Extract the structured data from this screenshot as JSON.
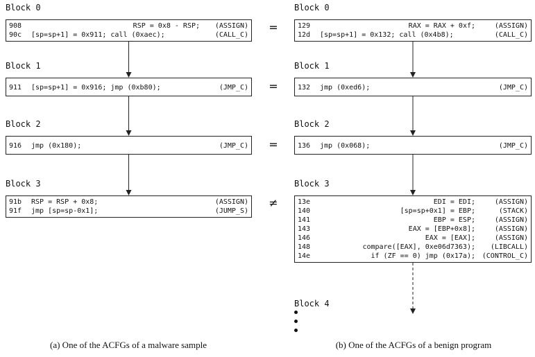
{
  "left": {
    "blocks": [
      {
        "label": "Block 0",
        "rows": [
          {
            "addr": "908",
            "code": "RSP = 0x8 - RSP;",
            "tag": "(ASSIGN)"
          },
          {
            "addr": "90c",
            "code": "[sp=sp+1] = 0x911; call (0xaec);",
            "tag": "(CALL_C)"
          }
        ]
      },
      {
        "label": "Block 1",
        "rows": [
          {
            "addr": "911",
            "code": "[sp=sp+1] = 0x916; jmp (0xb80);",
            "tag": "(JMP_C)"
          }
        ]
      },
      {
        "label": "Block 2",
        "rows": [
          {
            "addr": "916",
            "code": "jmp (0x180);",
            "tag": "(JMP_C)"
          }
        ]
      },
      {
        "label": "Block 3",
        "rows": [
          {
            "addr": "91b",
            "code": "RSP = RSP + 0x8;",
            "tag": "(ASSIGN)"
          },
          {
            "addr": "91f",
            "code": "jmp [sp=sp-0x1];",
            "tag": "(JUMP_S)"
          }
        ]
      }
    ],
    "caption": "(a) One of the ACFGs of a malware sample"
  },
  "right": {
    "blocks": [
      {
        "label": "Block 0",
        "rows": [
          {
            "addr": "129",
            "code": "RAX = RAX + 0xf;",
            "tag": "(ASSIGN)"
          },
          {
            "addr": "12d",
            "code": "[sp=sp+1] = 0x132; call (0x4b8);",
            "tag": "(CALL_C)"
          }
        ]
      },
      {
        "label": "Block 1",
        "rows": [
          {
            "addr": "132",
            "code": "jmp (0xed6);",
            "tag": "(JMP_C)"
          }
        ]
      },
      {
        "label": "Block 2",
        "rows": [
          {
            "addr": "136",
            "code": "jmp (0x068);",
            "tag": "(JMP_C)"
          }
        ]
      },
      {
        "label": "Block 3",
        "rows": [
          {
            "addr": "13e",
            "code": "EDI = EDI;",
            "tag": "(ASSIGN)"
          },
          {
            "addr": "140",
            "code": "[sp=sp+0x1] = EBP;",
            "tag": "(STACK)"
          },
          {
            "addr": "141",
            "code": "EBP = ESP;",
            "tag": "(ASSIGN)"
          },
          {
            "addr": "143",
            "code": "EAX = [EBP+0x8];",
            "tag": "(ASSIGN)"
          },
          {
            "addr": "146",
            "code": "EAX = [EAX];",
            "tag": "(ASSIGN)"
          },
          {
            "addr": "148",
            "code": "compare([EAX], 0xe06d7363);",
            "tag": "(LIBCALL)"
          },
          {
            "addr": "14e",
            "code": "if (ZF == 0) jmp (0x17a);",
            "tag": "(CONTROL_C)"
          }
        ]
      },
      {
        "label": "Block 4",
        "rows": []
      }
    ],
    "caption": "(b) One of the ACFGs of a benign program"
  },
  "comparisons": [
    "=",
    "=",
    "=",
    "≠"
  ]
}
